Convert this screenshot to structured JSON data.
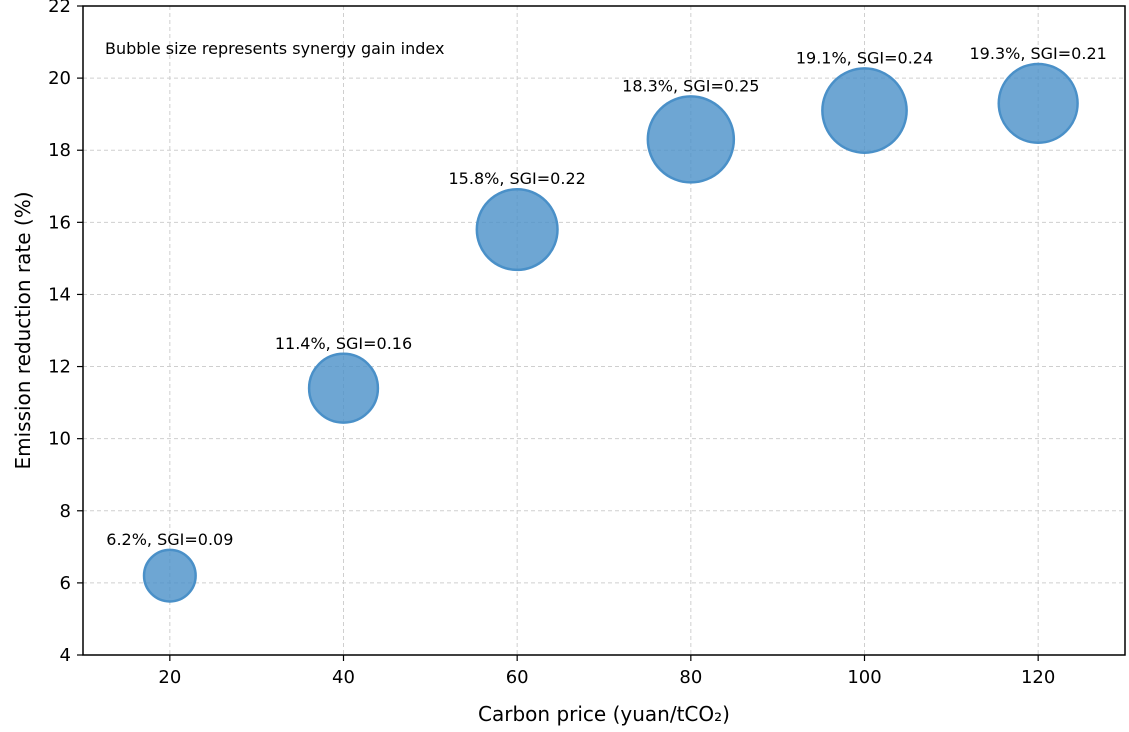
{
  "chart_data": {
    "type": "scatter",
    "xlabel": "Carbon price (yuan/tCO₂)",
    "ylabel": "Emission reduction rate (%)",
    "xlim": [
      10,
      130
    ],
    "ylim": [
      4,
      22
    ],
    "xticks": [
      20,
      40,
      60,
      80,
      100,
      120
    ],
    "yticks": [
      4,
      6,
      8,
      10,
      12,
      14,
      16,
      18,
      20,
      22
    ],
    "grid": true,
    "note": "Bubble size represents synergy gain index",
    "bubble_color": "#4a90c8",
    "points": [
      {
        "x": 20,
        "y": 6.2,
        "sgi": 0.09,
        "label": "6.2%, SGI=0.09"
      },
      {
        "x": 40,
        "y": 11.4,
        "sgi": 0.16,
        "label": "11.4%, SGI=0.16"
      },
      {
        "x": 60,
        "y": 15.8,
        "sgi": 0.22,
        "label": "15.8%, SGI=0.22"
      },
      {
        "x": 80,
        "y": 18.3,
        "sgi": 0.25,
        "label": "18.3%, SGI=0.25"
      },
      {
        "x": 100,
        "y": 19.1,
        "sgi": 0.24,
        "label": "19.1%, SGI=0.24"
      },
      {
        "x": 120,
        "y": 19.3,
        "sgi": 0.21,
        "label": "19.3%, SGI=0.21"
      }
    ]
  }
}
